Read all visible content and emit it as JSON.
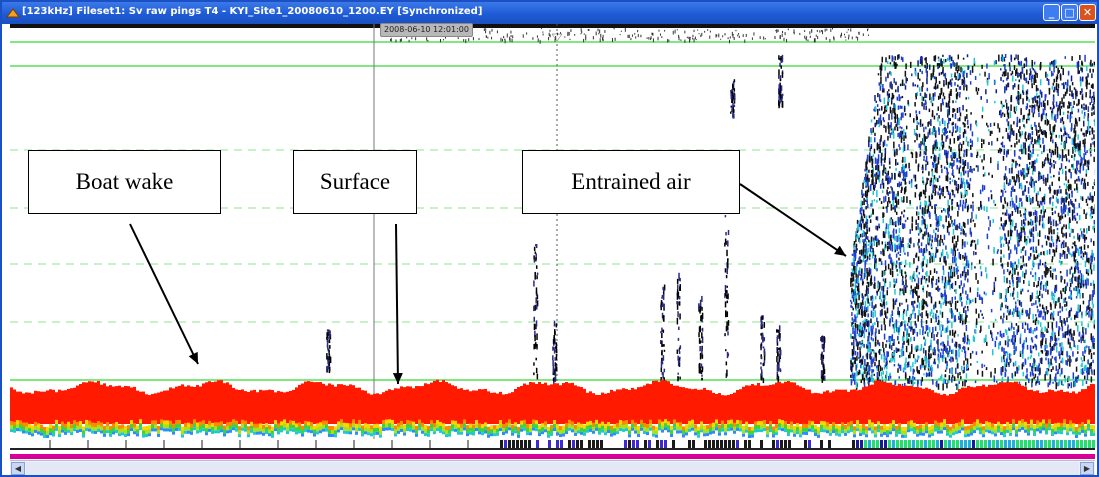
{
  "window": {
    "title": "[123kHz] Fileset1: Sv raw pings T4 - KYI_Site1_20080610_1200.EY [Synchronized]",
    "minimize_glyph": "_",
    "maximize_glyph": "□",
    "close_glyph": "✕"
  },
  "echogram": {
    "time_marker_label": "2008-06-10 12:01:00",
    "palette": {
      "surface_band": "#ff1a00",
      "green_line": "#55e055",
      "dashed_line": "#8fe58f",
      "ink": "#1a1a66",
      "blue": "#1f3fd0",
      "cyan": "#20c8d0"
    }
  },
  "annotations": {
    "boat_wake": "Boat wake",
    "surface": "Surface",
    "entrained_air": "Entrained air"
  },
  "scrollbar": {
    "left_glyph": "◀",
    "right_glyph": "▶"
  }
}
